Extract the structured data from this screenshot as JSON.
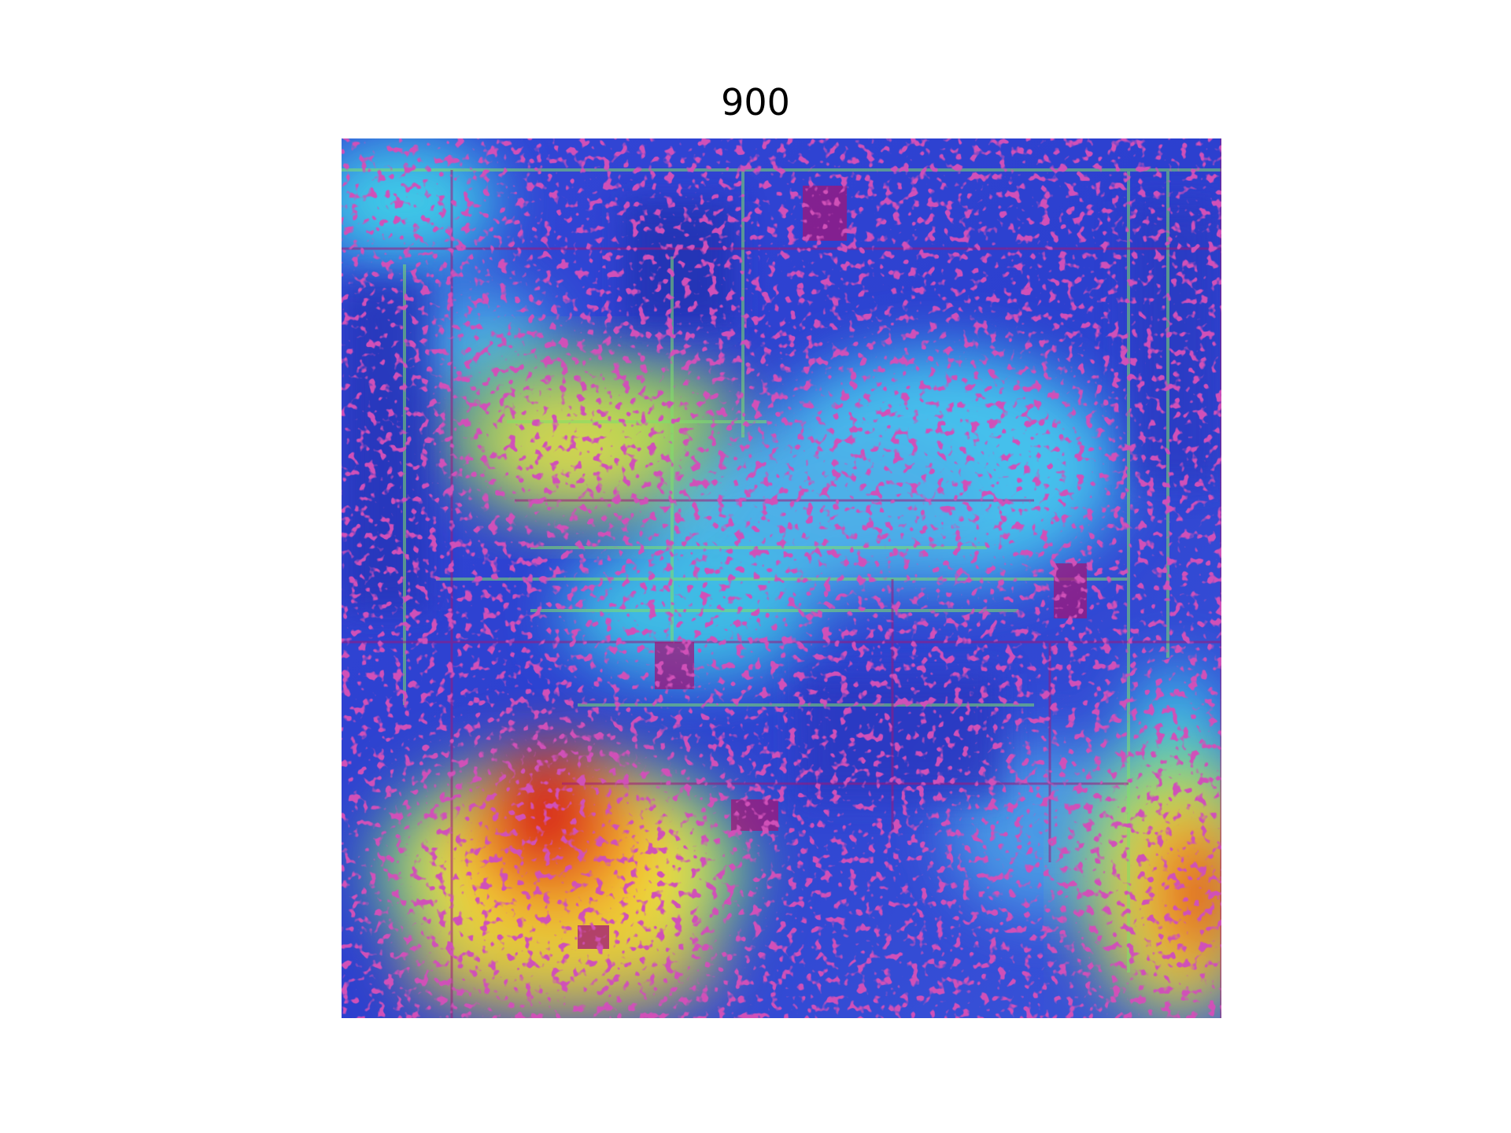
{
  "figure": {
    "title": "900"
  },
  "image": {
    "description_icon": "heatmap-overlay-image",
    "palette": {
      "base_blue": "#2f45d8",
      "deep_blue": "#1f2fb8",
      "cyan": "#3fd0e8",
      "green": "#7fe06a",
      "yellow": "#f2e23a",
      "orange": "#f28c28",
      "red": "#d81e1e",
      "magenta": "#a0157a"
    }
  }
}
